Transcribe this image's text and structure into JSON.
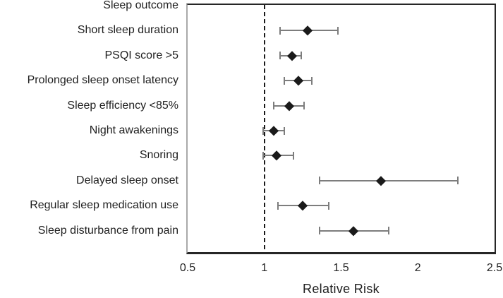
{
  "chart_data": {
    "type": "scatter",
    "variant": "forest-plot",
    "title": "",
    "xlabel": "Relative Risk",
    "ylabel": "",
    "category_axis_header": "Sleep outcome",
    "xlim": [
      0.5,
      2.5
    ],
    "x_ticks": [
      0.5,
      1,
      1.5,
      2,
      2.5
    ],
    "x_tick_labels": [
      "0.5",
      "1",
      "1.5",
      "2",
      "2.5"
    ],
    "reference_line_x": 1.0,
    "grid": false,
    "legend": "none",
    "marker": "diamond",
    "colors": {
      "marker": "#1a1a1a",
      "error_bar": "#7d7d7d",
      "reference_line": "#1a1a1a",
      "plot_border": "#262626",
      "text": "#1f1f1f",
      "background": "#ffffff"
    },
    "rows": [
      {
        "label": "Short sleep duration",
        "rr": 1.28,
        "ci_low": 1.1,
        "ci_high": 1.48
      },
      {
        "label": "PSQI score >5",
        "rr": 1.18,
        "ci_low": 1.1,
        "ci_high": 1.24
      },
      {
        "label": "Prolonged sleep onset latency",
        "rr": 1.22,
        "ci_low": 1.13,
        "ci_high": 1.31
      },
      {
        "label": "Sleep efficiency <85%",
        "rr": 1.16,
        "ci_low": 1.06,
        "ci_high": 1.26
      },
      {
        "label": "Night awakenings",
        "rr": 1.06,
        "ci_low": 0.99,
        "ci_high": 1.13
      },
      {
        "label": "Snoring",
        "rr": 1.08,
        "ci_low": 0.99,
        "ci_high": 1.19
      },
      {
        "label": "Delayed sleep onset",
        "rr": 1.76,
        "ci_low": 1.36,
        "ci_high": 2.26
      },
      {
        "label": "Regular sleep medication use",
        "rr": 1.25,
        "ci_low": 1.09,
        "ci_high": 1.42
      },
      {
        "label": "Sleep disturbance from pain",
        "rr": 1.58,
        "ci_low": 1.36,
        "ci_high": 1.81
      }
    ]
  }
}
